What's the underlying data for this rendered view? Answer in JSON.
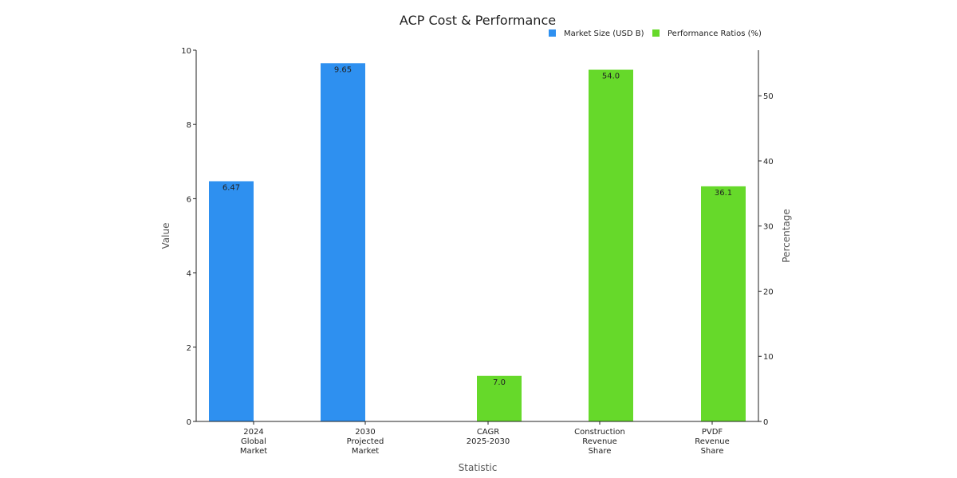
{
  "chart_data": {
    "type": "bar",
    "title": "ACP Cost & Performance",
    "xlabel": "Statistic",
    "ylabel": "Value",
    "y2label": "Percentage",
    "categories": [
      [
        "2024",
        "Global",
        "Market"
      ],
      [
        "2030",
        "Projected",
        "Market"
      ],
      [
        "CAGR",
        "2025-2030"
      ],
      [
        "Construction",
        "Revenue",
        "Share"
      ],
      [
        "PVDF",
        "Revenue",
        "Share"
      ]
    ],
    "ylim": [
      0,
      10
    ],
    "y2lim": [
      0,
      57
    ],
    "yticks": [
      0,
      2,
      4,
      6,
      8,
      10
    ],
    "y2ticks": [
      0,
      10,
      20,
      30,
      40,
      50
    ],
    "legend_position": "top-right",
    "series": [
      {
        "name": "Market Size (USD B)",
        "axis": "left",
        "color": "#2e90f0",
        "values": [
          6.47,
          9.65,
          null,
          null,
          null
        ],
        "labels": [
          "6.47",
          "9.65",
          null,
          null,
          null
        ]
      },
      {
        "name": "Performance Ratios (%)",
        "axis": "right",
        "color": "#66d92a",
        "values": [
          null,
          null,
          7.0,
          54.0,
          36.1
        ],
        "labels": [
          null,
          null,
          "7.0",
          "54.0",
          "36.1"
        ]
      }
    ]
  }
}
